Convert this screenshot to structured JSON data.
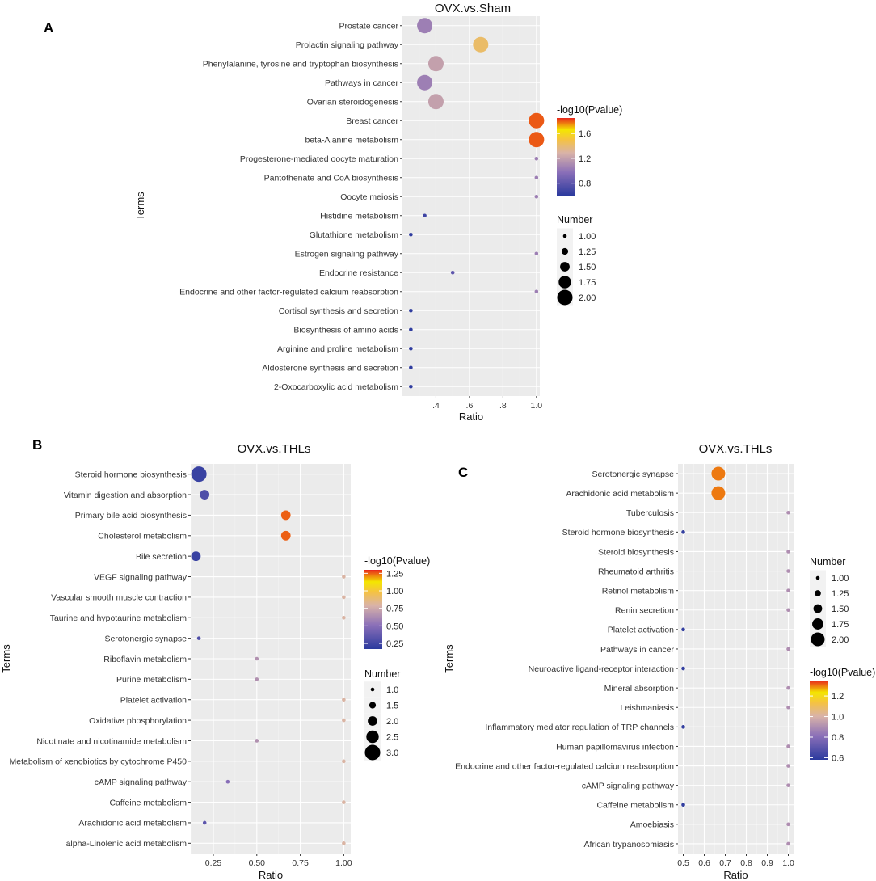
{
  "chart_data": [
    {
      "type": "scatter",
      "panel": "A",
      "title": "OVX.vs.Sham",
      "xlabel": "Ratio",
      "ylabel": "Terms",
      "xlim": [
        0.2,
        1.02
      ],
      "xticks": [
        0.4,
        0.6,
        0.8,
        1.0
      ],
      "xtick_labels": [
        ".4",
        ".6",
        ".8",
        "1.0"
      ],
      "color_legend": {
        "title": "-log10(Pvalue)",
        "range": [
          0.6,
          1.85
        ],
        "ticks": [
          0.8,
          1.2,
          1.6
        ],
        "tick_labels": [
          "0.8",
          "1.2",
          "1.6"
        ]
      },
      "size_legend": {
        "title": "Number",
        "range": [
          1,
          2
        ],
        "values": [
          1.0,
          1.25,
          1.5,
          1.75,
          2.0
        ],
        "labels": [
          "1.00",
          "1.25",
          "1.50",
          "1.75",
          "2.00"
        ]
      },
      "points": [
        {
          "term": "Prostate cancer",
          "ratio": 0.333,
          "number": 2,
          "pvalue": 1.05
        },
        {
          "term": "Prolactin signaling pathway",
          "ratio": 0.667,
          "number": 2,
          "pvalue": 1.42
        },
        {
          "term": "Phenylalanine, tyrosine and tryptophan biosynthesis",
          "ratio": 0.4,
          "number": 2,
          "pvalue": 1.2
        },
        {
          "term": "Pathways in cancer",
          "ratio": 0.333,
          "number": 2,
          "pvalue": 1.05
        },
        {
          "term": "Ovarian steroidogenesis",
          "ratio": 0.4,
          "number": 2,
          "pvalue": 1.2
        },
        {
          "term": "Breast cancer",
          "ratio": 1.0,
          "number": 2,
          "pvalue": 1.8
        },
        {
          "term": "beta-Alanine metabolism",
          "ratio": 1.0,
          "number": 2,
          "pvalue": 1.8
        },
        {
          "term": "Progesterone-mediated oocyte maturation",
          "ratio": 1.0,
          "number": 1,
          "pvalue": 1.05
        },
        {
          "term": "Pantothenate and CoA biosynthesis",
          "ratio": 1.0,
          "number": 1,
          "pvalue": 1.05
        },
        {
          "term": "Oocyte meiosis",
          "ratio": 1.0,
          "number": 1,
          "pvalue": 1.05
        },
        {
          "term": "Histidine metabolism",
          "ratio": 0.333,
          "number": 1,
          "pvalue": 0.68
        },
        {
          "term": "Glutathione metabolism",
          "ratio": 0.25,
          "number": 1,
          "pvalue": 0.62
        },
        {
          "term": "Estrogen signaling pathway",
          "ratio": 1.0,
          "number": 1,
          "pvalue": 1.05
        },
        {
          "term": "Endocrine resistance",
          "ratio": 0.5,
          "number": 1,
          "pvalue": 0.8
        },
        {
          "term": "Endocrine and other factor-regulated calcium reabsorption",
          "ratio": 1.0,
          "number": 1,
          "pvalue": 1.05
        },
        {
          "term": "Cortisol synthesis and secretion",
          "ratio": 0.25,
          "number": 1,
          "pvalue": 0.62
        },
        {
          "term": "Biosynthesis of amino acids",
          "ratio": 0.25,
          "number": 1,
          "pvalue": 0.62
        },
        {
          "term": "Arginine and proline metabolism",
          "ratio": 0.25,
          "number": 1,
          "pvalue": 0.62
        },
        {
          "term": "Aldosterone synthesis and secretion",
          "ratio": 0.25,
          "number": 1,
          "pvalue": 0.62
        },
        {
          "term": "2-Oxocarboxylic acid metabolism",
          "ratio": 0.25,
          "number": 1,
          "pvalue": 0.62
        }
      ]
    },
    {
      "type": "scatter",
      "panel": "B",
      "title": "OVX.vs.THLs",
      "xlabel": "Ratio",
      "ylabel": "Terms",
      "xlim": [
        0.12,
        1.04
      ],
      "xticks": [
        0.25,
        0.5,
        0.75,
        1.0
      ],
      "xtick_labels": [
        "0.25",
        "0.50",
        "0.75",
        "1.00"
      ],
      "color_legend": {
        "title": "-log10(Pvalue)",
        "range": [
          0.17,
          1.3
        ],
        "ticks": [
          0.25,
          0.5,
          0.75,
          1.0,
          1.25
        ],
        "tick_labels": [
          "0.25",
          "0.50",
          "0.75",
          "1.00",
          "1.25"
        ]
      },
      "size_legend": {
        "title": "Number",
        "range": [
          1,
          3
        ],
        "values": [
          1.0,
          1.5,
          2.0,
          2.5,
          3.0
        ],
        "labels": [
          "1.0",
          "1.5",
          "2.0",
          "2.5",
          "3.0"
        ]
      },
      "points": [
        {
          "term": "Steroid hormone biosynthesis",
          "ratio": 0.167,
          "number": 3,
          "pvalue": 0.22
        },
        {
          "term": "Vitamin digestion and absorption",
          "ratio": 0.2,
          "number": 2,
          "pvalue": 0.3
        },
        {
          "term": "Primary bile acid biosynthesis",
          "ratio": 0.667,
          "number": 2,
          "pvalue": 1.25
        },
        {
          "term": "Cholesterol metabolism",
          "ratio": 0.667,
          "number": 2,
          "pvalue": 1.25
        },
        {
          "term": "Bile secretion",
          "ratio": 0.15,
          "number": 2,
          "pvalue": 0.22
        },
        {
          "term": "VEGF signaling pathway",
          "ratio": 1.0,
          "number": 1,
          "pvalue": 0.8
        },
        {
          "term": "Vascular smooth muscle contraction",
          "ratio": 1.0,
          "number": 1,
          "pvalue": 0.8
        },
        {
          "term": "Taurine and hypotaurine metabolism",
          "ratio": 1.0,
          "number": 1,
          "pvalue": 0.8
        },
        {
          "term": "Serotonergic synapse",
          "ratio": 0.167,
          "number": 1,
          "pvalue": 0.3
        },
        {
          "term": "Riboflavin metabolism",
          "ratio": 0.5,
          "number": 1,
          "pvalue": 0.65
        },
        {
          "term": "Purine metabolism",
          "ratio": 0.5,
          "number": 1,
          "pvalue": 0.65
        },
        {
          "term": "Platelet activation",
          "ratio": 1.0,
          "number": 1,
          "pvalue": 0.8
        },
        {
          "term": "Oxidative phosphorylation",
          "ratio": 1.0,
          "number": 1,
          "pvalue": 0.8
        },
        {
          "term": "Nicotinate and nicotinamide metabolism",
          "ratio": 0.5,
          "number": 1,
          "pvalue": 0.65
        },
        {
          "term": "Metabolism of xenobiotics by cytochrome P450",
          "ratio": 1.0,
          "number": 1,
          "pvalue": 0.8
        },
        {
          "term": "cAMP signaling pathway",
          "ratio": 0.333,
          "number": 1,
          "pvalue": 0.5
        },
        {
          "term": "Caffeine metabolism",
          "ratio": 1.0,
          "number": 1,
          "pvalue": 0.8
        },
        {
          "term": "Arachidonic acid metabolism",
          "ratio": 0.2,
          "number": 1,
          "pvalue": 0.35
        },
        {
          "term": "alpha-Linolenic acid metabolism",
          "ratio": 1.0,
          "number": 1,
          "pvalue": 0.8
        }
      ]
    },
    {
      "type": "scatter",
      "panel": "C",
      "title": "OVX.vs.THLs",
      "xlabel": "Ratio",
      "ylabel": "Terms",
      "xlim": [
        0.475,
        1.025
      ],
      "xticks": [
        0.5,
        0.6,
        0.7,
        0.8,
        0.9,
        1.0
      ],
      "xtick_labels": [
        "0.5",
        "0.6",
        "0.7",
        "0.8",
        "0.9",
        "1.0"
      ],
      "color_legend": {
        "title": "-log10(Pvalue)",
        "range": [
          0.58,
          1.35
        ],
        "ticks": [
          0.6,
          0.8,
          1.0,
          1.2
        ],
        "tick_labels": [
          "0.6",
          "0.8",
          "1.0",
          "1.2"
        ]
      },
      "size_legend": {
        "title": "Number",
        "range": [
          1,
          2
        ],
        "values": [
          1.0,
          1.25,
          1.5,
          1.75,
          2.0
        ],
        "labels": [
          "1.00",
          "1.25",
          "1.50",
          "1.75",
          "2.00"
        ]
      },
      "points": [
        {
          "term": "Serotonergic synapse",
          "ratio": 0.667,
          "number": 2,
          "pvalue": 1.3
        },
        {
          "term": "Arachidonic acid metabolism",
          "ratio": 0.667,
          "number": 2,
          "pvalue": 1.3
        },
        {
          "term": "Tuberculosis",
          "ratio": 1.0,
          "number": 1,
          "pvalue": 0.9
        },
        {
          "term": "Steroid hormone biosynthesis",
          "ratio": 0.5,
          "number": 1,
          "pvalue": 0.6
        },
        {
          "term": "Steroid biosynthesis",
          "ratio": 1.0,
          "number": 1,
          "pvalue": 0.9
        },
        {
          "term": "Rheumatoid arthritis",
          "ratio": 1.0,
          "number": 1,
          "pvalue": 0.9
        },
        {
          "term": "Retinol metabolism",
          "ratio": 1.0,
          "number": 1,
          "pvalue": 0.9
        },
        {
          "term": "Renin secretion",
          "ratio": 1.0,
          "number": 1,
          "pvalue": 0.9
        },
        {
          "term": "Platelet activation",
          "ratio": 0.5,
          "number": 1,
          "pvalue": 0.6
        },
        {
          "term": "Pathways in cancer",
          "ratio": 1.0,
          "number": 1,
          "pvalue": 0.9
        },
        {
          "term": "Neuroactive ligand-receptor interaction",
          "ratio": 0.5,
          "number": 1,
          "pvalue": 0.6
        },
        {
          "term": "Mineral absorption",
          "ratio": 1.0,
          "number": 1,
          "pvalue": 0.9
        },
        {
          "term": "Leishmaniasis",
          "ratio": 1.0,
          "number": 1,
          "pvalue": 0.9
        },
        {
          "term": "Inflammatory mediator regulation of TRP channels",
          "ratio": 0.5,
          "number": 1,
          "pvalue": 0.6
        },
        {
          "term": "Human papillomavirus infection",
          "ratio": 1.0,
          "number": 1,
          "pvalue": 0.9
        },
        {
          "term": "Endocrine and other factor-regulated calcium reabsorption",
          "ratio": 1.0,
          "number": 1,
          "pvalue": 0.9
        },
        {
          "term": "cAMP signaling pathway",
          "ratio": 1.0,
          "number": 1,
          "pvalue": 0.9
        },
        {
          "term": "Caffeine metabolism",
          "ratio": 0.5,
          "number": 1,
          "pvalue": 0.6
        },
        {
          "term": "Amoebiasis",
          "ratio": 1.0,
          "number": 1,
          "pvalue": 0.9
        },
        {
          "term": "African trypanosomiasis",
          "ratio": 1.0,
          "number": 1,
          "pvalue": 0.9
        }
      ]
    }
  ],
  "colors": {
    "low": "#2b3a9e",
    "midlow": "#8a6fb8",
    "mid": "#d9b3a8",
    "midhigh": "#f5c242",
    "high_a": "#f0e000",
    "top": "#e8261c"
  }
}
